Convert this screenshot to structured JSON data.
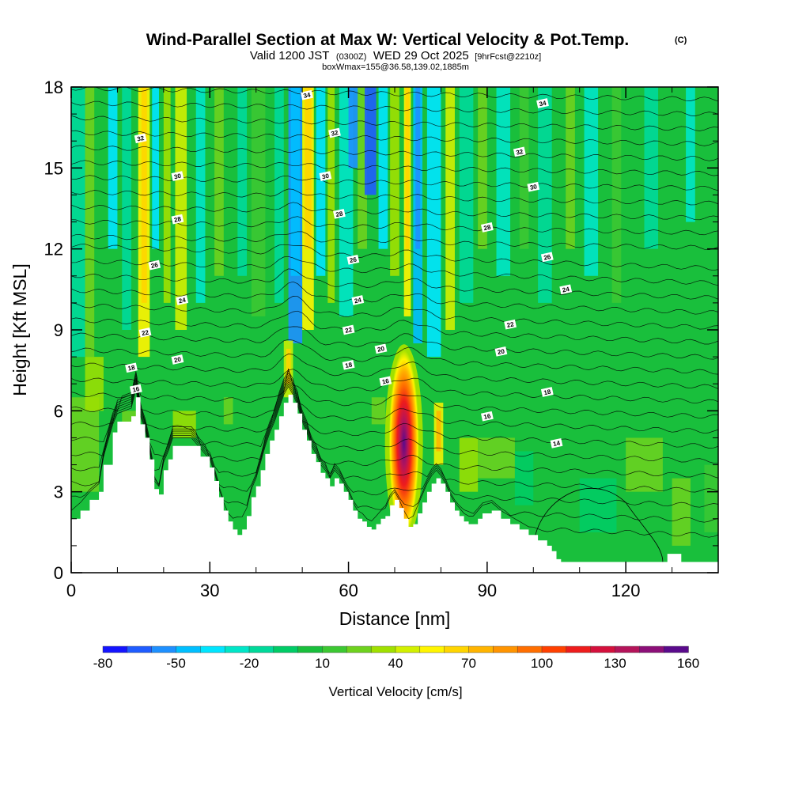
{
  "chart_data": {
    "type": "heatmap",
    "title": "Wind-Parallel Section at Max W: Vertical Velocity & Pot.Temp.",
    "title_mark": "(C)",
    "subtitle": {
      "valid": "Valid 1200 JST",
      "utc": "(0300Z)",
      "date": "WED 29 Oct 2025",
      "fcst": "[9hrFcst@2210z]"
    },
    "box_info": "boxWmax=155@36.58,139.02,1885m",
    "xlabel": "Distance [nm]",
    "ylabel": "Height [Kft MSL]",
    "xlim": [
      0,
      140
    ],
    "ylim": [
      0,
      18
    ],
    "x_ticks": [
      "0",
      "30",
      "60",
      "90",
      "120"
    ],
    "y_ticks": [
      "0",
      "3",
      "6",
      "9",
      "12",
      "15",
      "18"
    ],
    "colorbar": {
      "label": "Vertical Velocity [cm/s]",
      "tick_labels": [
        "-80",
        "-50",
        "-20",
        "10",
        "40",
        "70",
        "100",
        "130",
        "160"
      ],
      "colors": [
        "#1414ff",
        "#1f5cff",
        "#1e90ff",
        "#00bfff",
        "#00e5ff",
        "#00e6c8",
        "#00d99a",
        "#00cc66",
        "#19bf3c",
        "#3cc832",
        "#6ed21e",
        "#a0e000",
        "#d2f000",
        "#fff500",
        "#ffd500",
        "#ffb400",
        "#ff9400",
        "#ff6e00",
        "#ff4000",
        "#ee1c1c",
        "#d4103c",
        "#b4145a",
        "#8c0f78",
        "#5a0a8c"
      ]
    },
    "contour_labels": [
      {
        "text": "34",
        "x": 51,
        "y": 17.7
      },
      {
        "text": "34",
        "x": 102,
        "y": 17.4
      },
      {
        "text": "32",
        "x": 15,
        "y": 16.1
      },
      {
        "text": "32",
        "x": 57,
        "y": 16.3
      },
      {
        "text": "32",
        "x": 97,
        "y": 15.6
      },
      {
        "text": "30",
        "x": 23,
        "y": 14.7
      },
      {
        "text": "30",
        "x": 55,
        "y": 14.7
      },
      {
        "text": "30",
        "x": 100,
        "y": 14.3
      },
      {
        "text": "28",
        "x": 23,
        "y": 13.1
      },
      {
        "text": "28",
        "x": 58,
        "y": 13.3
      },
      {
        "text": "28",
        "x": 90,
        "y": 12.8
      },
      {
        "text": "26",
        "x": 18,
        "y": 11.4
      },
      {
        "text": "26",
        "x": 61,
        "y": 11.6
      },
      {
        "text": "26",
        "x": 103,
        "y": 11.7
      },
      {
        "text": "24",
        "x": 24,
        "y": 10.1
      },
      {
        "text": "24",
        "x": 62,
        "y": 10.1
      },
      {
        "text": "24",
        "x": 107,
        "y": 10.5
      },
      {
        "text": "22",
        "x": 16,
        "y": 8.9
      },
      {
        "text": "22",
        "x": 60,
        "y": 9.0
      },
      {
        "text": "22",
        "x": 95,
        "y": 9.2
      },
      {
        "text": "20",
        "x": 23,
        "y": 7.9
      },
      {
        "text": "20",
        "x": 67,
        "y": 8.3
      },
      {
        "text": "20",
        "x": 93,
        "y": 8.2
      },
      {
        "text": "18",
        "x": 13,
        "y": 7.6
      },
      {
        "text": "18",
        "x": 60,
        "y": 7.7
      },
      {
        "text": "18",
        "x": 103,
        "y": 6.7
      },
      {
        "text": "16",
        "x": 14,
        "y": 6.8
      },
      {
        "text": "16",
        "x": 68,
        "y": 7.1
      },
      {
        "text": "16",
        "x": 90,
        "y": 5.8
      },
      {
        "text": "14",
        "x": 105,
        "y": 4.8
      }
    ],
    "updraft_max": {
      "x": 72,
      "y": 4.8,
      "value": 160
    },
    "terrain": [
      [
        0,
        2.0
      ],
      [
        2,
        2.3
      ],
      [
        4,
        2.7
      ],
      [
        6,
        3.0
      ],
      [
        7,
        4.0
      ],
      [
        9,
        5.2
      ],
      [
        10,
        5.6
      ],
      [
        13,
        5.8
      ],
      [
        14,
        6.5
      ],
      [
        15,
        5.5
      ],
      [
        16,
        5.0
      ],
      [
        17,
        4.2
      ],
      [
        18,
        3.1
      ],
      [
        19,
        2.9
      ],
      [
        20,
        3.8
      ],
      [
        21,
        4.2
      ],
      [
        22,
        4.7
      ],
      [
        24,
        4.7
      ],
      [
        26,
        4.7
      ],
      [
        28,
        4.3
      ],
      [
        30,
        3.9
      ],
      [
        31,
        3.4
      ],
      [
        32,
        2.8
      ],
      [
        33,
        2.3
      ],
      [
        34,
        1.9
      ],
      [
        35,
        1.6
      ],
      [
        36,
        1.4
      ],
      [
        37,
        1.6
      ],
      [
        38,
        2.1
      ],
      [
        39,
        2.8
      ],
      [
        40,
        3.2
      ],
      [
        41,
        3.8
      ],
      [
        42,
        4.4
      ],
      [
        43,
        4.9
      ],
      [
        44,
        5.3
      ],
      [
        45,
        5.8
      ],
      [
        46,
        6.3
      ],
      [
        47,
        6.6
      ],
      [
        48,
        6.3
      ],
      [
        49,
        5.9
      ],
      [
        50,
        5.3
      ],
      [
        51,
        4.9
      ],
      [
        52,
        4.4
      ],
      [
        53,
        4.1
      ],
      [
        54,
        3.7
      ],
      [
        55,
        3.5
      ],
      [
        56,
        3.2
      ],
      [
        57,
        3.5
      ],
      [
        58,
        3.3
      ],
      [
        59,
        3.0
      ],
      [
        60,
        2.7
      ],
      [
        61,
        2.3
      ],
      [
        62,
        2.0
      ],
      [
        63,
        1.9
      ],
      [
        64,
        1.7
      ],
      [
        65,
        1.6
      ],
      [
        66,
        1.8
      ],
      [
        67,
        2.0
      ],
      [
        68,
        2.1
      ],
      [
        69,
        2.5
      ],
      [
        70,
        2.7
      ],
      [
        71,
        2.4
      ],
      [
        72,
        2.0
      ],
      [
        73,
        1.7
      ],
      [
        74,
        1.8
      ],
      [
        75,
        2.2
      ],
      [
        76,
        2.6
      ],
      [
        77,
        3.0
      ],
      [
        78,
        3.3
      ],
      [
        79,
        3.5
      ],
      [
        80,
        3.3
      ],
      [
        81,
        3.0
      ],
      [
        82,
        2.6
      ],
      [
        83,
        2.3
      ],
      [
        84,
        2.1
      ],
      [
        85,
        1.9
      ],
      [
        86,
        1.8
      ],
      [
        87,
        1.8
      ],
      [
        88,
        2.0
      ],
      [
        89,
        2.2
      ],
      [
        91,
        2.3
      ],
      [
        93,
        2.0
      ],
      [
        95,
        1.8
      ],
      [
        97,
        1.6
      ],
      [
        99,
        1.4
      ],
      [
        101,
        1.2
      ],
      [
        103,
        1.0
      ],
      [
        104,
        0.8
      ],
      [
        105,
        0.5
      ],
      [
        106,
        0.4
      ],
      [
        110,
        0.4
      ],
      [
        115,
        0.4
      ],
      [
        120,
        0.4
      ],
      [
        125,
        0.4
      ],
      [
        128,
        0.4
      ],
      [
        129,
        0.7
      ],
      [
        131,
        0.7
      ],
      [
        132,
        0.4
      ],
      [
        140,
        0.4
      ]
    ]
  }
}
